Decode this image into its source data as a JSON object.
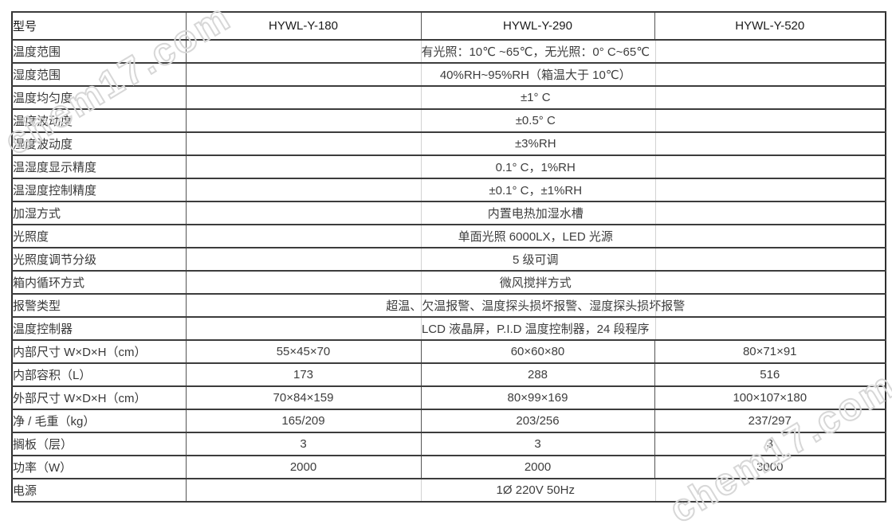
{
  "watermark": {
    "text": "chem17.com"
  },
  "table": {
    "header": {
      "label": "型号",
      "models": [
        "HYWL-Y-180",
        "HYWL-Y-290",
        "HYWL-Y-520"
      ]
    },
    "rows": [
      {
        "label": "温度范围",
        "merged": true,
        "value": "有光照：10℃ ~65℃，无光照：0° C~65℃"
      },
      {
        "label": "湿度范围",
        "merged": true,
        "value": "40%RH~95%RH（箱温大于 10℃）"
      },
      {
        "label": "温度均匀度",
        "merged": true,
        "value": "±1° C"
      },
      {
        "label": "温度波动度",
        "merged": true,
        "value": "±0.5° C"
      },
      {
        "label": "湿度波动度",
        "merged": true,
        "value": "±3%RH"
      },
      {
        "label": "温湿度显示精度",
        "merged": true,
        "value": "0.1° C，1%RH"
      },
      {
        "label": "温湿度控制精度",
        "merged": true,
        "value": "±0.1° C，±1%RH"
      },
      {
        "label": "加湿方式",
        "merged": true,
        "value": "内置电热加湿水槽"
      },
      {
        "label": "光照度",
        "merged": true,
        "value": "单面光照 6000LX，LED 光源"
      },
      {
        "label": "光照度调节分级",
        "merged": true,
        "value": "5 级可调"
      },
      {
        "label": "箱内循环方式",
        "merged": true,
        "value": "微风搅拌方式"
      },
      {
        "label": "报警类型",
        "merged": true,
        "value": "超温、欠温报警、温度探头损坏报警、湿度探头损坏报警"
      },
      {
        "label": "温度控制器",
        "merged": true,
        "value": "LCD 液晶屏，P.I.D 温度控制器，24 段程序"
      },
      {
        "label": "内部尺寸 W×D×H（cm）",
        "merged": false,
        "values": [
          "55×45×70",
          "60×60×80",
          "80×71×91"
        ]
      },
      {
        "label": "内部容积（L）",
        "merged": false,
        "values": [
          "173",
          "288",
          "516"
        ]
      },
      {
        "label": "外部尺寸 W×D×H（cm）",
        "merged": false,
        "values": [
          "70×84×159",
          "80×99×169",
          "100×107×180"
        ]
      },
      {
        "label": "净 / 毛重（kg）",
        "merged": false,
        "values": [
          "165/209",
          "203/256",
          "237/297"
        ]
      },
      {
        "label": "搁板（层）",
        "merged": false,
        "values": [
          "3",
          "3",
          "3"
        ]
      },
      {
        "label": "功率（W）",
        "merged": false,
        "values": [
          "2000",
          "2000",
          "3000"
        ]
      },
      {
        "label": "电源",
        "merged": true,
        "value": "1Ø 220V 50Hz"
      }
    ]
  }
}
